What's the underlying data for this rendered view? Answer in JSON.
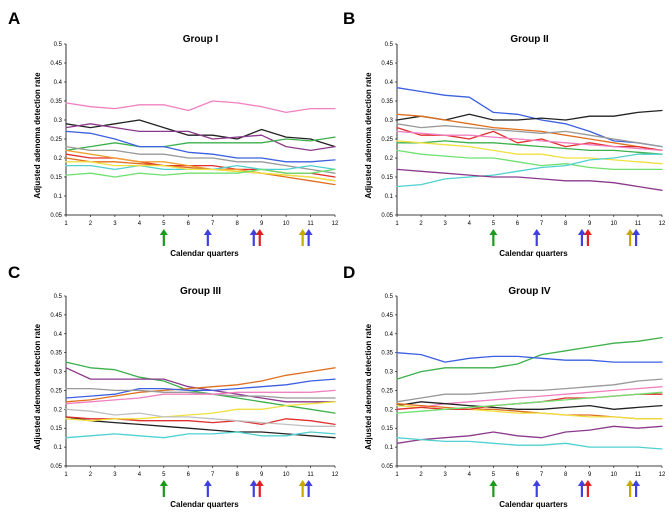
{
  "chart_data": [
    {
      "type": "line",
      "panel": "A",
      "title": "Group I",
      "xlabel": "Calendar quarters",
      "ylabel": "Adjusted adenoma detection rate",
      "x": [
        1,
        2,
        3,
        4,
        5,
        6,
        7,
        8,
        9,
        10,
        11,
        12
      ],
      "xticks": [
        "1",
        "2",
        "3",
        "4",
        "5",
        "6",
        "7",
        "8",
        "9",
        "10",
        "11",
        "12"
      ],
      "yticks": [
        "0.05",
        "0.1",
        "0.15",
        "0.2",
        "0.25",
        "0.3",
        "0.35",
        "0.4",
        "0.45",
        "0.5"
      ],
      "ylim": [
        0.05,
        0.5
      ],
      "arrows": [
        {
          "quarter": 5,
          "colors": [
            "#1a9a1a"
          ]
        },
        {
          "quarter": 6.8,
          "colors": [
            "#4040e0"
          ]
        },
        {
          "quarter": 8.8,
          "colors": [
            "#4040e0",
            "#e02020"
          ]
        },
        {
          "quarter": 10.8,
          "colors": [
            "#c8a800",
            "#4040e0"
          ]
        }
      ],
      "series": [
        {
          "color": "#f080c0",
          "values": [
            0.345,
            0.335,
            0.33,
            0.34,
            0.34,
            0.325,
            0.35,
            0.345,
            0.335,
            0.32,
            0.33,
            0.33
          ]
        },
        {
          "color": "#222222",
          "values": [
            0.29,
            0.28,
            0.29,
            0.3,
            0.28,
            0.26,
            0.26,
            0.25,
            0.275,
            0.255,
            0.25,
            0.23
          ]
        },
        {
          "color": "#8b3a8b",
          "values": [
            0.28,
            0.29,
            0.28,
            0.27,
            0.27,
            0.27,
            0.25,
            0.255,
            0.26,
            0.23,
            0.22,
            0.23
          ]
        },
        {
          "color": "#3cb04c",
          "values": [
            0.22,
            0.23,
            0.24,
            0.23,
            0.23,
            0.24,
            0.24,
            0.24,
            0.24,
            0.25,
            0.245,
            0.255
          ]
        },
        {
          "color": "#3c60e0",
          "values": [
            0.27,
            0.265,
            0.25,
            0.23,
            0.23,
            0.215,
            0.21,
            0.2,
            0.2,
            0.19,
            0.19,
            0.195
          ]
        },
        {
          "color": "#999999",
          "values": [
            0.23,
            0.22,
            0.22,
            0.21,
            0.21,
            0.2,
            0.2,
            0.19,
            0.19,
            0.18,
            0.17,
            0.16
          ]
        },
        {
          "color": "#e03030",
          "values": [
            0.21,
            0.2,
            0.2,
            0.19,
            0.18,
            0.18,
            0.18,
            0.17,
            0.17,
            0.16,
            0.16,
            0.15
          ]
        },
        {
          "color": "#f0a030",
          "values": [
            0.22,
            0.21,
            0.2,
            0.19,
            0.19,
            0.18,
            0.17,
            0.17,
            0.16,
            0.155,
            0.15,
            0.14
          ]
        },
        {
          "color": "#e07020",
          "values": [
            0.2,
            0.19,
            0.19,
            0.185,
            0.18,
            0.175,
            0.17,
            0.165,
            0.16,
            0.15,
            0.14,
            0.13
          ]
        },
        {
          "color": "#50d0d0",
          "values": [
            0.18,
            0.18,
            0.17,
            0.18,
            0.17,
            0.17,
            0.17,
            0.18,
            0.17,
            0.17,
            0.18,
            0.17
          ]
        },
        {
          "color": "#f0e040",
          "values": [
            0.19,
            0.19,
            0.18,
            0.18,
            0.18,
            0.17,
            0.17,
            0.165,
            0.16,
            0.155,
            0.15,
            0.14
          ]
        },
        {
          "color": "#70e070",
          "values": [
            0.155,
            0.16,
            0.15,
            0.16,
            0.155,
            0.16,
            0.16,
            0.16,
            0.17,
            0.16,
            0.16,
            0.17
          ]
        }
      ]
    },
    {
      "type": "line",
      "panel": "B",
      "title": "Group II",
      "xlabel": "Calendar quarters",
      "ylabel": "Adjusted adenoma detection rate",
      "x": [
        1,
        2,
        3,
        4,
        5,
        6,
        7,
        8,
        9,
        10,
        11,
        12
      ],
      "xticks": [
        "1",
        "2",
        "3",
        "4",
        "5",
        "6",
        "7",
        "8",
        "9",
        "10",
        "11",
        "12"
      ],
      "yticks": [
        "0.05",
        "0.1",
        "0.15",
        "0.2",
        "0.25",
        "0.3",
        "0.35",
        "0.4",
        "0.45",
        "0.5"
      ],
      "ylim": [
        0.05,
        0.5
      ],
      "arrows": [
        {
          "quarter": 5,
          "colors": [
            "#1a9a1a"
          ]
        },
        {
          "quarter": 6.8,
          "colors": [
            "#4040e0"
          ]
        },
        {
          "quarter": 8.8,
          "colors": [
            "#4040e0",
            "#e02020"
          ]
        },
        {
          "quarter": 10.8,
          "colors": [
            "#c8a800",
            "#4040e0"
          ]
        }
      ],
      "series": [
        {
          "color": "#3c60e0",
          "values": [
            0.385,
            0.375,
            0.365,
            0.36,
            0.32,
            0.315,
            0.3,
            0.29,
            0.27,
            0.245,
            0.24,
            0.23
          ]
        },
        {
          "color": "#222222",
          "values": [
            0.3,
            0.31,
            0.3,
            0.315,
            0.3,
            0.3,
            0.305,
            0.3,
            0.31,
            0.31,
            0.32,
            0.325
          ]
        },
        {
          "color": "#e07020",
          "values": [
            0.315,
            0.31,
            0.3,
            0.29,
            0.28,
            0.275,
            0.27,
            0.26,
            0.25,
            0.24,
            0.23,
            0.22
          ]
        },
        {
          "color": "#999999",
          "values": [
            0.29,
            0.28,
            0.285,
            0.28,
            0.275,
            0.27,
            0.265,
            0.27,
            0.26,
            0.25,
            0.24,
            0.23
          ]
        },
        {
          "color": "#e03030",
          "values": [
            0.28,
            0.26,
            0.26,
            0.25,
            0.27,
            0.24,
            0.25,
            0.23,
            0.24,
            0.23,
            0.23,
            0.22
          ]
        },
        {
          "color": "#f080c0",
          "values": [
            0.27,
            0.265,
            0.26,
            0.26,
            0.255,
            0.25,
            0.245,
            0.24,
            0.235,
            0.23,
            0.225,
            0.22
          ]
        },
        {
          "color": "#3cb04c",
          "values": [
            0.24,
            0.24,
            0.245,
            0.24,
            0.24,
            0.235,
            0.23,
            0.225,
            0.22,
            0.22,
            0.215,
            0.21
          ]
        },
        {
          "color": "#f0e040",
          "values": [
            0.245,
            0.24,
            0.235,
            0.23,
            0.22,
            0.21,
            0.21,
            0.2,
            0.2,
            0.195,
            0.19,
            0.185
          ]
        },
        {
          "color": "#70e070",
          "values": [
            0.22,
            0.21,
            0.205,
            0.2,
            0.2,
            0.19,
            0.18,
            0.185,
            0.175,
            0.17,
            0.17,
            0.17
          ]
        },
        {
          "color": "#50d0d0",
          "values": [
            0.125,
            0.13,
            0.145,
            0.15,
            0.155,
            0.165,
            0.175,
            0.18,
            0.195,
            0.2,
            0.21,
            0.21
          ]
        },
        {
          "color": "#8b3a8b",
          "values": [
            0.17,
            0.165,
            0.16,
            0.155,
            0.15,
            0.15,
            0.145,
            0.14,
            0.14,
            0.135,
            0.125,
            0.115
          ]
        }
      ]
    },
    {
      "type": "line",
      "panel": "C",
      "title": "Group III",
      "xlabel": "Calendar quarters",
      "ylabel": "Adjusted adenoma detection rate",
      "x": [
        1,
        2,
        3,
        4,
        5,
        6,
        7,
        8,
        9,
        10,
        11,
        12
      ],
      "xticks": [
        "1",
        "2",
        "3",
        "4",
        "5",
        "6",
        "7",
        "8",
        "9",
        "10",
        "11",
        "12"
      ],
      "yticks": [
        "0.05",
        "0.1",
        "0.15",
        "0.2",
        "0.25",
        "0.3",
        "0.35",
        "0.4",
        "0.45",
        "0.5"
      ],
      "ylim": [
        0.05,
        0.5
      ],
      "arrows": [
        {
          "quarter": 5,
          "colors": [
            "#1a9a1a"
          ]
        },
        {
          "quarter": 6.8,
          "colors": [
            "#4040e0"
          ]
        },
        {
          "quarter": 8.8,
          "colors": [
            "#4040e0",
            "#e02020"
          ]
        },
        {
          "quarter": 10.8,
          "colors": [
            "#c8a800",
            "#4040e0"
          ]
        }
      ],
      "series": [
        {
          "color": "#3cb04c",
          "values": [
            0.325,
            0.31,
            0.305,
            0.285,
            0.275,
            0.25,
            0.24,
            0.23,
            0.22,
            0.21,
            0.2,
            0.19
          ]
        },
        {
          "color": "#8b3a8b",
          "values": [
            0.31,
            0.28,
            0.28,
            0.28,
            0.28,
            0.26,
            0.25,
            0.24,
            0.23,
            0.22,
            0.22,
            0.22
          ]
        },
        {
          "color": "#e07020",
          "values": [
            0.22,
            0.225,
            0.235,
            0.245,
            0.25,
            0.255,
            0.26,
            0.265,
            0.275,
            0.29,
            0.3,
            0.31
          ]
        },
        {
          "color": "#3c60e0",
          "values": [
            0.23,
            0.235,
            0.24,
            0.255,
            0.255,
            0.25,
            0.25,
            0.255,
            0.26,
            0.265,
            0.275,
            0.28
          ]
        },
        {
          "color": "#999999",
          "values": [
            0.255,
            0.255,
            0.25,
            0.25,
            0.245,
            0.245,
            0.24,
            0.235,
            0.235,
            0.23,
            0.23,
            0.23
          ]
        },
        {
          "color": "#f080c0",
          "values": [
            0.215,
            0.22,
            0.225,
            0.23,
            0.24,
            0.24,
            0.24,
            0.245,
            0.245,
            0.245,
            0.245,
            0.25
          ]
        },
        {
          "color": "#222222",
          "values": [
            0.18,
            0.17,
            0.165,
            0.16,
            0.155,
            0.15,
            0.145,
            0.14,
            0.14,
            0.135,
            0.13,
            0.125
          ]
        },
        {
          "color": "#e03030",
          "values": [
            0.18,
            0.175,
            0.175,
            0.17,
            0.17,
            0.17,
            0.165,
            0.17,
            0.16,
            0.175,
            0.17,
            0.16
          ]
        },
        {
          "color": "#f0e040",
          "values": [
            0.175,
            0.17,
            0.175,
            0.175,
            0.18,
            0.185,
            0.19,
            0.2,
            0.2,
            0.21,
            0.215,
            0.22
          ]
        },
        {
          "color": "#50d0d0",
          "values": [
            0.125,
            0.13,
            0.135,
            0.13,
            0.125,
            0.135,
            0.135,
            0.14,
            0.13,
            0.13,
            0.14,
            0.135
          ]
        },
        {
          "color": "#c0c0c0",
          "values": [
            0.2,
            0.195,
            0.185,
            0.19,
            0.18,
            0.18,
            0.175,
            0.17,
            0.165,
            0.16,
            0.155,
            0.155
          ]
        }
      ]
    },
    {
      "type": "line",
      "panel": "D",
      "title": "Group IV",
      "xlabel": "Calendar quarters",
      "ylabel": "Adjusted adenoma detection rate",
      "x": [
        1,
        2,
        3,
        4,
        5,
        6,
        7,
        8,
        9,
        10,
        11,
        12
      ],
      "xticks": [
        "1",
        "2",
        "3",
        "4",
        "5",
        "6",
        "7",
        "8",
        "9",
        "10",
        "11",
        "12"
      ],
      "yticks": [
        "0.05",
        "0.1",
        "0.15",
        "0.2",
        "0.25",
        "0.3",
        "0.35",
        "0.4",
        "0.45",
        "0.5"
      ],
      "ylim": [
        0.05,
        0.5
      ],
      "arrows": [
        {
          "quarter": 5,
          "colors": [
            "#1a9a1a"
          ]
        },
        {
          "quarter": 6.8,
          "colors": [
            "#4040e0"
          ]
        },
        {
          "quarter": 8.8,
          "colors": [
            "#4040e0",
            "#e02020"
          ]
        },
        {
          "quarter": 10.8,
          "colors": [
            "#c8a800",
            "#4040e0"
          ]
        }
      ],
      "series": [
        {
          "color": "#3cb04c",
          "values": [
            0.28,
            0.3,
            0.31,
            0.31,
            0.31,
            0.32,
            0.345,
            0.355,
            0.365,
            0.375,
            0.38,
            0.39
          ]
        },
        {
          "color": "#3c60e0",
          "values": [
            0.35,
            0.345,
            0.325,
            0.335,
            0.34,
            0.34,
            0.335,
            0.33,
            0.33,
            0.325,
            0.325,
            0.325
          ]
        },
        {
          "color": "#999999",
          "values": [
            0.22,
            0.23,
            0.24,
            0.24,
            0.245,
            0.25,
            0.25,
            0.255,
            0.26,
            0.265,
            0.275,
            0.28
          ]
        },
        {
          "color": "#f080c0",
          "values": [
            0.2,
            0.205,
            0.215,
            0.22,
            0.225,
            0.23,
            0.235,
            0.24,
            0.245,
            0.25,
            0.255,
            0.26
          ]
        },
        {
          "color": "#222222",
          "values": [
            0.21,
            0.22,
            0.215,
            0.21,
            0.205,
            0.2,
            0.2,
            0.205,
            0.21,
            0.2,
            0.205,
            0.21
          ]
        },
        {
          "color": "#e07020",
          "values": [
            0.215,
            0.21,
            0.205,
            0.2,
            0.2,
            0.195,
            0.19,
            0.185,
            0.185,
            0.18,
            0.175,
            0.175
          ]
        },
        {
          "color": "#f0e040",
          "values": [
            0.21,
            0.205,
            0.2,
            0.2,
            0.195,
            0.19,
            0.19,
            0.185,
            0.18,
            0.18,
            0.175,
            0.175
          ]
        },
        {
          "color": "#e03030",
          "values": [
            0.2,
            0.205,
            0.2,
            0.2,
            0.21,
            0.215,
            0.22,
            0.23,
            0.23,
            0.235,
            0.24,
            0.24
          ]
        },
        {
          "color": "#70e070",
          "values": [
            0.19,
            0.195,
            0.2,
            0.205,
            0.21,
            0.215,
            0.22,
            0.225,
            0.23,
            0.235,
            0.24,
            0.245
          ]
        },
        {
          "color": "#8b3a8b",
          "values": [
            0.11,
            0.12,
            0.125,
            0.13,
            0.14,
            0.13,
            0.125,
            0.14,
            0.145,
            0.155,
            0.15,
            0.155
          ]
        },
        {
          "color": "#50d0d0",
          "values": [
            0.125,
            0.12,
            0.115,
            0.115,
            0.11,
            0.105,
            0.105,
            0.11,
            0.1,
            0.1,
            0.1,
            0.095
          ]
        }
      ]
    }
  ]
}
